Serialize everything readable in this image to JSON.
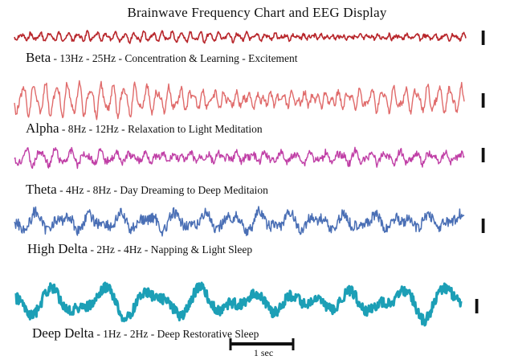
{
  "title": "Brainwave  Frequency Chart and EEG Display",
  "bands": [
    {
      "name": "Beta",
      "details": " - 13Hz - 25Hz - Concentration & Learning - Excitement",
      "color": "#b8262b",
      "amplitude": 5,
      "cycles": 48,
      "scale_marker": "I"
    },
    {
      "name": "Alpha",
      "details": " - 8Hz - 12Hz - Relaxation to Light Meditation",
      "color": "#e06b6b",
      "amplitude": 16,
      "cycles": 40,
      "scale_marker": "I"
    },
    {
      "name": "Theta",
      "details": " - 4Hz - 8Hz - Day Dreaming to Deep Meditaion",
      "color": "#c03fa6",
      "amplitude": 8,
      "cycles": 30,
      "scale_marker": "I"
    },
    {
      "name": "High Delta",
      "details": " - 2Hz - 4Hz - Napping & Light Sleep",
      "color": "#4a6fb5",
      "amplitude": 13,
      "cycles": 16,
      "scale_marker": "I"
    },
    {
      "name": "Deep Delta",
      "details": " - 1Hz - 2Hz - Deep Restorative Sleep",
      "color": "#1c9fb6",
      "amplitude": 19,
      "cycles": 9,
      "scale_marker": "I"
    }
  ],
  "scalebar": {
    "label": "1 sec"
  }
}
